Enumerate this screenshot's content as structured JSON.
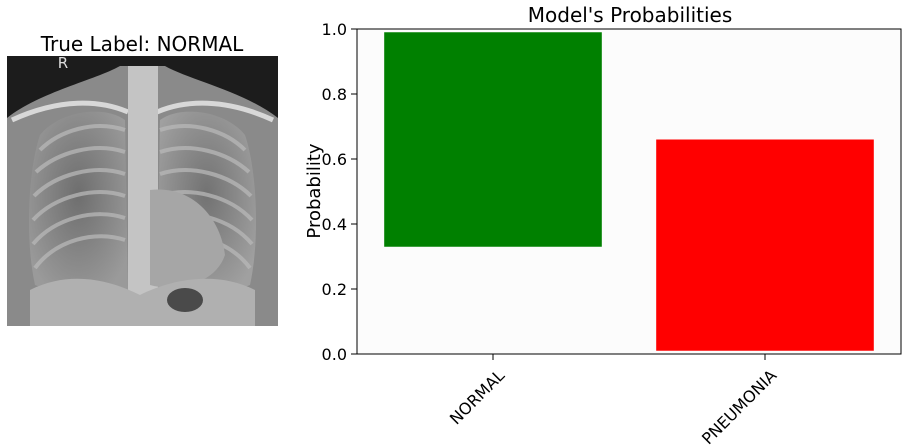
{
  "image_panel": {
    "title": "True Label: NORMAL",
    "marker_text": "R"
  },
  "chart_data": {
    "type": "bar",
    "title": "Model's Probabilities",
    "xlabel": "",
    "ylabel": "Probability",
    "categories": [
      "NORMAL",
      "PNEUMONIA"
    ],
    "bars": [
      {
        "category": "NORMAL",
        "bottom": 0.33,
        "top": 0.99,
        "color": "#008000"
      },
      {
        "category": "PNEUMONIA",
        "bottom": 0.01,
        "top": 0.66,
        "color": "#ff0000"
      }
    ],
    "ylim": [
      0,
      1
    ],
    "yticks": [
      "0.0",
      "0.2",
      "0.4",
      "0.6",
      "0.8",
      "1.0"
    ],
    "grid": false,
    "background": "#fcfcfc",
    "x_tick_rotation": "45 degrees"
  }
}
